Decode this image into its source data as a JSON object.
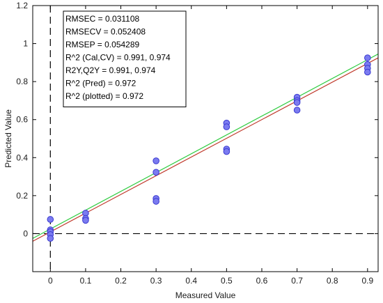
{
  "chart_data": {
    "type": "scatter",
    "xlabel": "Measured Value",
    "ylabel": "Predicted Value",
    "xlim": [
      -0.05,
      0.93
    ],
    "ylim": [
      -0.2,
      1.2
    ],
    "x_ticks": [
      "0",
      "0.1",
      "0.2",
      "0.3",
      "0.4",
      "0.5",
      "0.6",
      "0.7",
      "0.8",
      "0.9"
    ],
    "y_ticks": [
      "0",
      "0.2",
      "0.4",
      "0.6",
      "0.8",
      "1",
      "1.2"
    ],
    "x_tick_values": [
      0,
      0.1,
      0.2,
      0.3,
      0.4,
      0.5,
      0.6,
      0.7,
      0.8,
      0.9
    ],
    "y_tick_values": [
      0,
      0.2,
      0.4,
      0.6,
      0.8,
      1,
      1.2
    ],
    "points": [
      {
        "x": 0,
        "y": 0.075
      },
      {
        "x": 0,
        "y": 0.02
      },
      {
        "x": 0,
        "y": 0.01
      },
      {
        "x": 0,
        "y": -0.005
      },
      {
        "x": 0,
        "y": -0.025
      },
      {
        "x": 0.1,
        "y": 0.108
      },
      {
        "x": 0.1,
        "y": 0.08
      },
      {
        "x": 0.1,
        "y": 0.07
      },
      {
        "x": 0.3,
        "y": 0.383
      },
      {
        "x": 0.3,
        "y": 0.323
      },
      {
        "x": 0.3,
        "y": 0.185
      },
      {
        "x": 0.3,
        "y": 0.17
      },
      {
        "x": 0.5,
        "y": 0.582
      },
      {
        "x": 0.5,
        "y": 0.562
      },
      {
        "x": 0.5,
        "y": 0.445
      },
      {
        "x": 0.5,
        "y": 0.432
      },
      {
        "x": 0.7,
        "y": 0.718
      },
      {
        "x": 0.7,
        "y": 0.7
      },
      {
        "x": 0.7,
        "y": 0.69
      },
      {
        "x": 0.7,
        "y": 0.65
      },
      {
        "x": 0.9,
        "y": 0.925
      },
      {
        "x": 0.9,
        "y": 0.89
      },
      {
        "x": 0.9,
        "y": 0.87
      },
      {
        "x": 0.9,
        "y": 0.85
      }
    ],
    "fit_lines": [
      {
        "color": "#2ecc40",
        "x": [
          -0.05,
          0.93
        ],
        "y": [
          -0.025,
          0.945
        ]
      },
      {
        "color": "#c0392b",
        "x": [
          -0.05,
          0.93
        ],
        "y": [
          -0.04,
          0.925
        ]
      }
    ],
    "reference_lines": {
      "x": 0,
      "y": 0
    },
    "stats": [
      "RMSEC = 0.031108",
      "RMSECV = 0.052408",
      "RMSEP = 0.054289",
      "R^2 (Cal,CV) = 0.991,  0.974",
      "R2Y,Q2Y = 0.991, 0.974",
      "R^2 (Pred) = 0.972",
      "R^2 (plotted) = 0.972"
    ],
    "colors": {
      "point_fill": "#7b7bf0",
      "point_stroke": "#3a3ad0",
      "axis": "#000000"
    }
  }
}
